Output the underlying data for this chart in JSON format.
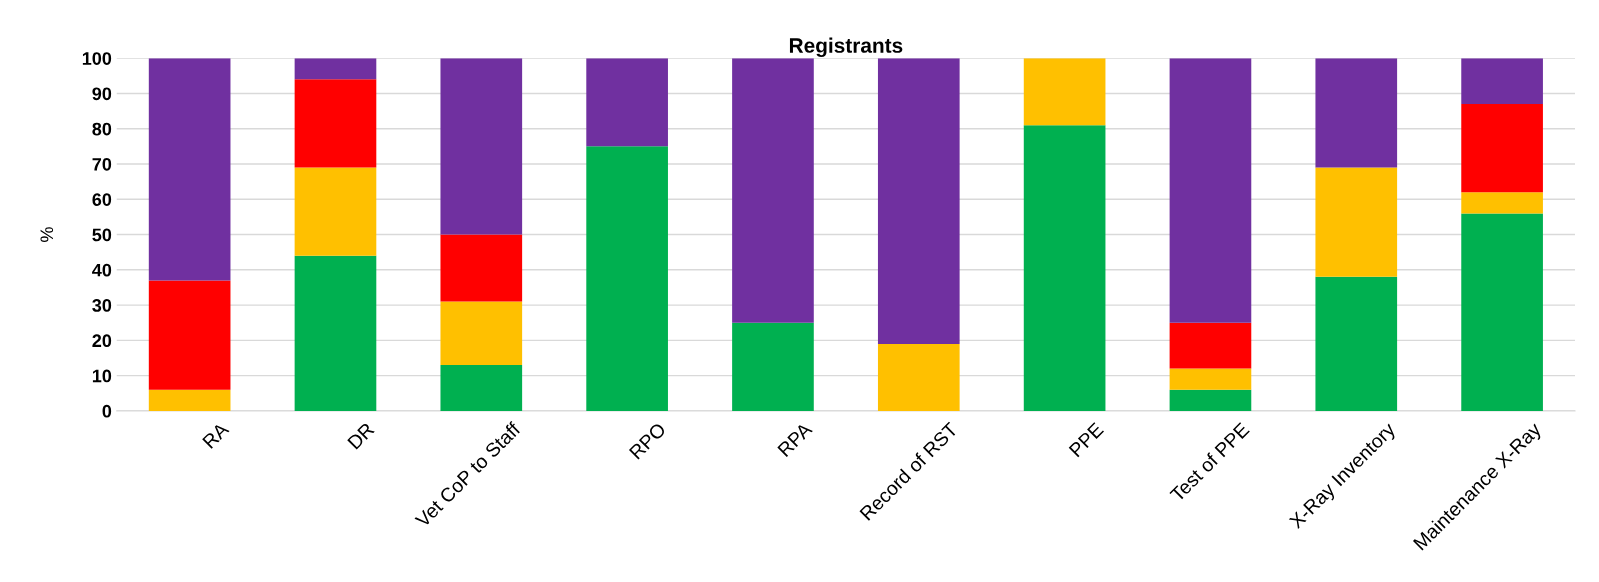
{
  "chart_data": {
    "type": "bar",
    "stacked": true,
    "title": "Registrants",
    "ylabel": "%",
    "categories": [
      "RA",
      "DR",
      "Vet CoP to Staff",
      "RPO",
      "RPA",
      "Record of RST",
      "PPE",
      "Test of PPE",
      "X-Ray Inventory",
      "Maintenance X-Ray"
    ],
    "series": [
      {
        "color": "#00b050",
        "values": [
          0,
          44,
          13,
          75,
          25,
          0,
          81,
          6,
          38,
          56
        ]
      },
      {
        "color": "#ffc000",
        "values": [
          6,
          25,
          18,
          0,
          0,
          19,
          19,
          6,
          31,
          6
        ]
      },
      {
        "color": "#ff0000",
        "values": [
          31,
          25,
          19,
          0,
          0,
          0,
          0,
          13,
          0,
          25
        ]
      },
      {
        "color": "#7030a0",
        "values": [
          63,
          6,
          50,
          25,
          75,
          81,
          0,
          75,
          31,
          13
        ]
      }
    ],
    "ylim": [
      0,
      100
    ],
    "yticks": [
      0,
      10,
      20,
      30,
      40,
      50,
      60,
      70,
      80,
      90,
      100
    ],
    "grid": "y",
    "legend": false
  }
}
